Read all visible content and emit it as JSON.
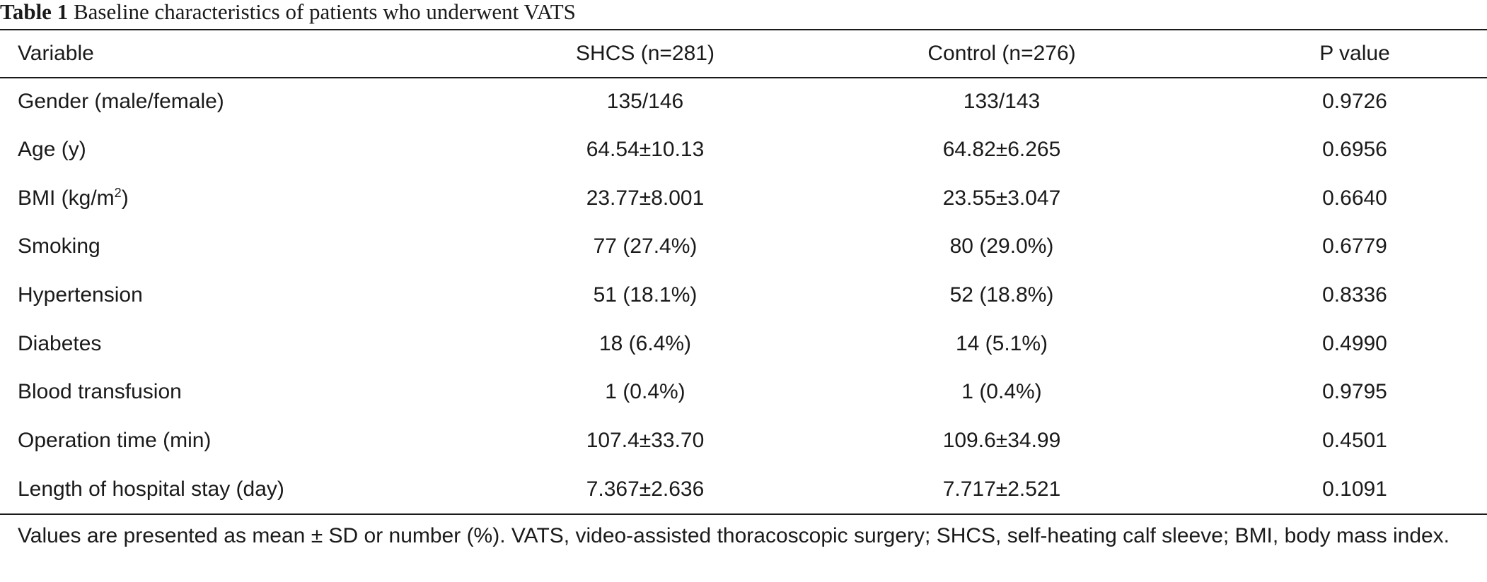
{
  "caption": {
    "label": "Table 1",
    "title": "Baseline characteristics of patients who underwent VATS"
  },
  "table": {
    "headers": [
      "Variable",
      "SHCS (n=281)",
      "Control (n=276)",
      "P value"
    ],
    "rows": [
      {
        "variable": "Gender (male/female)",
        "shcs": "135/146",
        "control": "133/143",
        "p": "0.9726"
      },
      {
        "variable": "Age (y)",
        "shcs": "64.54±10.13",
        "control": "64.82±6.265",
        "p": "0.6956"
      },
      {
        "variable": "BMI (kg/m",
        "variable_sup": "2",
        "variable_suffix": ")",
        "shcs": "23.77±8.001",
        "control": "23.55±3.047",
        "p": "0.6640"
      },
      {
        "variable": "Smoking",
        "shcs": "77 (27.4%)",
        "control": "80 (29.0%)",
        "p": "0.6779"
      },
      {
        "variable": "Hypertension",
        "shcs": "51 (18.1%)",
        "control": "52 (18.8%)",
        "p": "0.8336"
      },
      {
        "variable": "Diabetes",
        "shcs": "18 (6.4%)",
        "control": "14 (5.1%)",
        "p": "0.4990"
      },
      {
        "variable": "Blood transfusion",
        "shcs": "1 (0.4%)",
        "control": "1 (0.4%)",
        "p": "0.9795"
      },
      {
        "variable": "Operation time (min)",
        "shcs": "107.4±33.70",
        "control": "109.6±34.99",
        "p": "0.4501"
      },
      {
        "variable": "Length of hospital stay (day)",
        "shcs": "7.367±2.636",
        "control": "7.717±2.521",
        "p": "0.1091"
      }
    ]
  },
  "footnote": "Values are presented as mean ± SD or number (%). VATS, video-assisted thoracoscopic surgery; SHCS, self-heating calf sleeve; BMI, body mass index."
}
